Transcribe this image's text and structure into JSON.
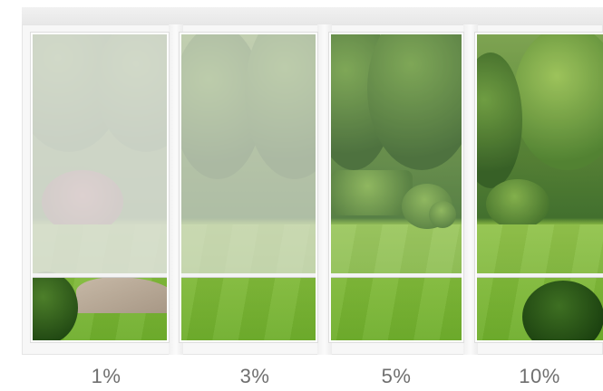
{
  "panels": [
    {
      "label": "1%",
      "blind_opacity": 0.88
    },
    {
      "label": "3%",
      "blind_opacity": 0.7
    },
    {
      "label": "5%",
      "blind_opacity": 0.18
    },
    {
      "label": "10%",
      "blind_opacity": 0.05
    }
  ],
  "colors": {
    "blind": "#dfe1dc",
    "frame": "#f7f7f7",
    "label": "#6f6f6f"
  }
}
